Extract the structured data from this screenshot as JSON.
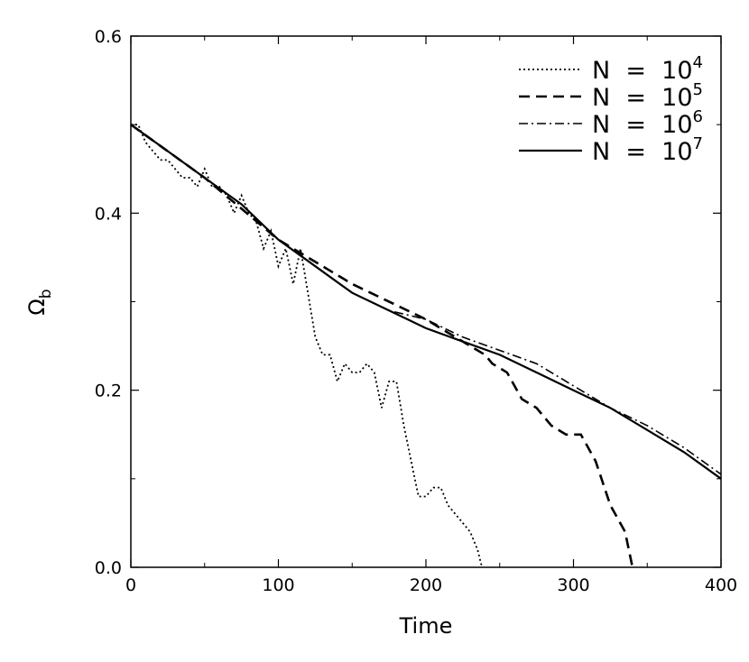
{
  "chart_data": {
    "type": "line",
    "xlabel": "Time",
    "ylabel": "Ω",
    "ylabel_sub": "b",
    "xlim": [
      0,
      400
    ],
    "ylim": [
      0.0,
      0.6
    ],
    "x_ticks": [
      "0",
      "100",
      "200",
      "300",
      "400"
    ],
    "y_ticks": [
      "0.0",
      "0.2",
      "0.4",
      "0.6"
    ],
    "grid": false,
    "legend_position": "top-right",
    "series": [
      {
        "base": "N  =  10",
        "exp": "4",
        "style": "dotted",
        "x": [
          0,
          5,
          10,
          15,
          20,
          25,
          30,
          35,
          40,
          45,
          50,
          55,
          60,
          65,
          70,
          75,
          80,
          85,
          90,
          95,
          100,
          105,
          110,
          115,
          120,
          125,
          130,
          135,
          140,
          145,
          150,
          155,
          160,
          165,
          170,
          175,
          180,
          185,
          190,
          195,
          200,
          205,
          210,
          215,
          220,
          225,
          230,
          235,
          238
        ],
        "y": [
          0.5,
          0.5,
          0.48,
          0.47,
          0.46,
          0.46,
          0.45,
          0.44,
          0.44,
          0.43,
          0.45,
          0.43,
          0.43,
          0.42,
          0.4,
          0.42,
          0.4,
          0.39,
          0.36,
          0.38,
          0.34,
          0.36,
          0.32,
          0.36,
          0.31,
          0.26,
          0.24,
          0.24,
          0.21,
          0.23,
          0.22,
          0.22,
          0.23,
          0.22,
          0.18,
          0.21,
          0.21,
          0.16,
          0.12,
          0.08,
          0.08,
          0.09,
          0.09,
          0.07,
          0.06,
          0.05,
          0.04,
          0.02,
          0.0
        ]
      },
      {
        "base": "N  =  10",
        "exp": "5",
        "style": "dashed",
        "x": [
          0,
          50,
          100,
          150,
          200,
          230,
          240,
          245,
          255,
          265,
          275,
          285,
          295,
          305,
          315,
          325,
          335,
          340
        ],
        "y": [
          0.5,
          0.44,
          0.37,
          0.32,
          0.28,
          0.25,
          0.24,
          0.23,
          0.22,
          0.19,
          0.18,
          0.16,
          0.15,
          0.15,
          0.12,
          0.07,
          0.04,
          0.0
        ]
      },
      {
        "base": "N  =  10",
        "exp": "6",
        "style": "dashdot",
        "x": [
          0,
          25,
          50,
          75,
          100,
          125,
          150,
          175,
          200,
          225,
          250,
          275,
          300,
          325,
          350,
          375,
          400
        ],
        "y": [
          0.5,
          0.47,
          0.44,
          0.41,
          0.37,
          0.34,
          0.31,
          0.29,
          0.28,
          0.26,
          0.245,
          0.23,
          0.205,
          0.18,
          0.16,
          0.135,
          0.105
        ]
      },
      {
        "base": "N  =  10",
        "exp": "7",
        "style": "solid",
        "x": [
          0,
          25,
          50,
          75,
          100,
          125,
          150,
          175,
          200,
          225,
          250,
          275,
          300,
          325,
          350,
          375,
          400
        ],
        "y": [
          0.5,
          0.47,
          0.44,
          0.41,
          0.37,
          0.34,
          0.31,
          0.29,
          0.27,
          0.255,
          0.24,
          0.22,
          0.2,
          0.18,
          0.155,
          0.13,
          0.1
        ]
      }
    ]
  }
}
